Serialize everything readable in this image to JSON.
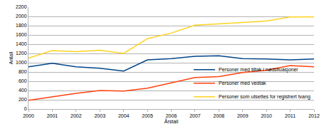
{
  "chart_data": {
    "type": "line",
    "x_label": "Årstall",
    "y_label": "Antall",
    "x": [
      2000,
      2001,
      2002,
      2003,
      2004,
      2005,
      2006,
      2007,
      2008,
      2009,
      2010,
      2011,
      2012
    ],
    "series": [
      {
        "name": "Personer med tiltak i nødsituasjoner",
        "color": "#004586",
        "values": [
          910,
          990,
          910,
          880,
          820,
          1060,
          1090,
          1140,
          1150,
          1090,
          1080,
          1060,
          1080
        ]
      },
      {
        "name": "Personer med vedtak",
        "color": "#ff420e",
        "values": [
          190,
          270,
          340,
          400,
          390,
          450,
          560,
          680,
          700,
          790,
          840,
          940,
          910
        ]
      },
      {
        "name": "Personer som utsettes for registrert tvang",
        "color": "#ffd320",
        "values": [
          1100,
          1260,
          1240,
          1270,
          1200,
          1520,
          1640,
          1810,
          1840,
          1870,
          1900,
          1990,
          1990
        ]
      }
    ],
    "xlim": [
      2000,
      2012
    ],
    "xticks": [
      2000,
      2001,
      2002,
      2003,
      2004,
      2005,
      2006,
      2007,
      2008,
      2009,
      2010,
      2011,
      2012
    ],
    "ylim": [
      0,
      2200
    ],
    "yticks": [
      0,
      200,
      400,
      600,
      800,
      1000,
      1200,
      1400,
      1600,
      1800,
      2000,
      2200
    ],
    "grid": true,
    "legend": "lower right"
  }
}
